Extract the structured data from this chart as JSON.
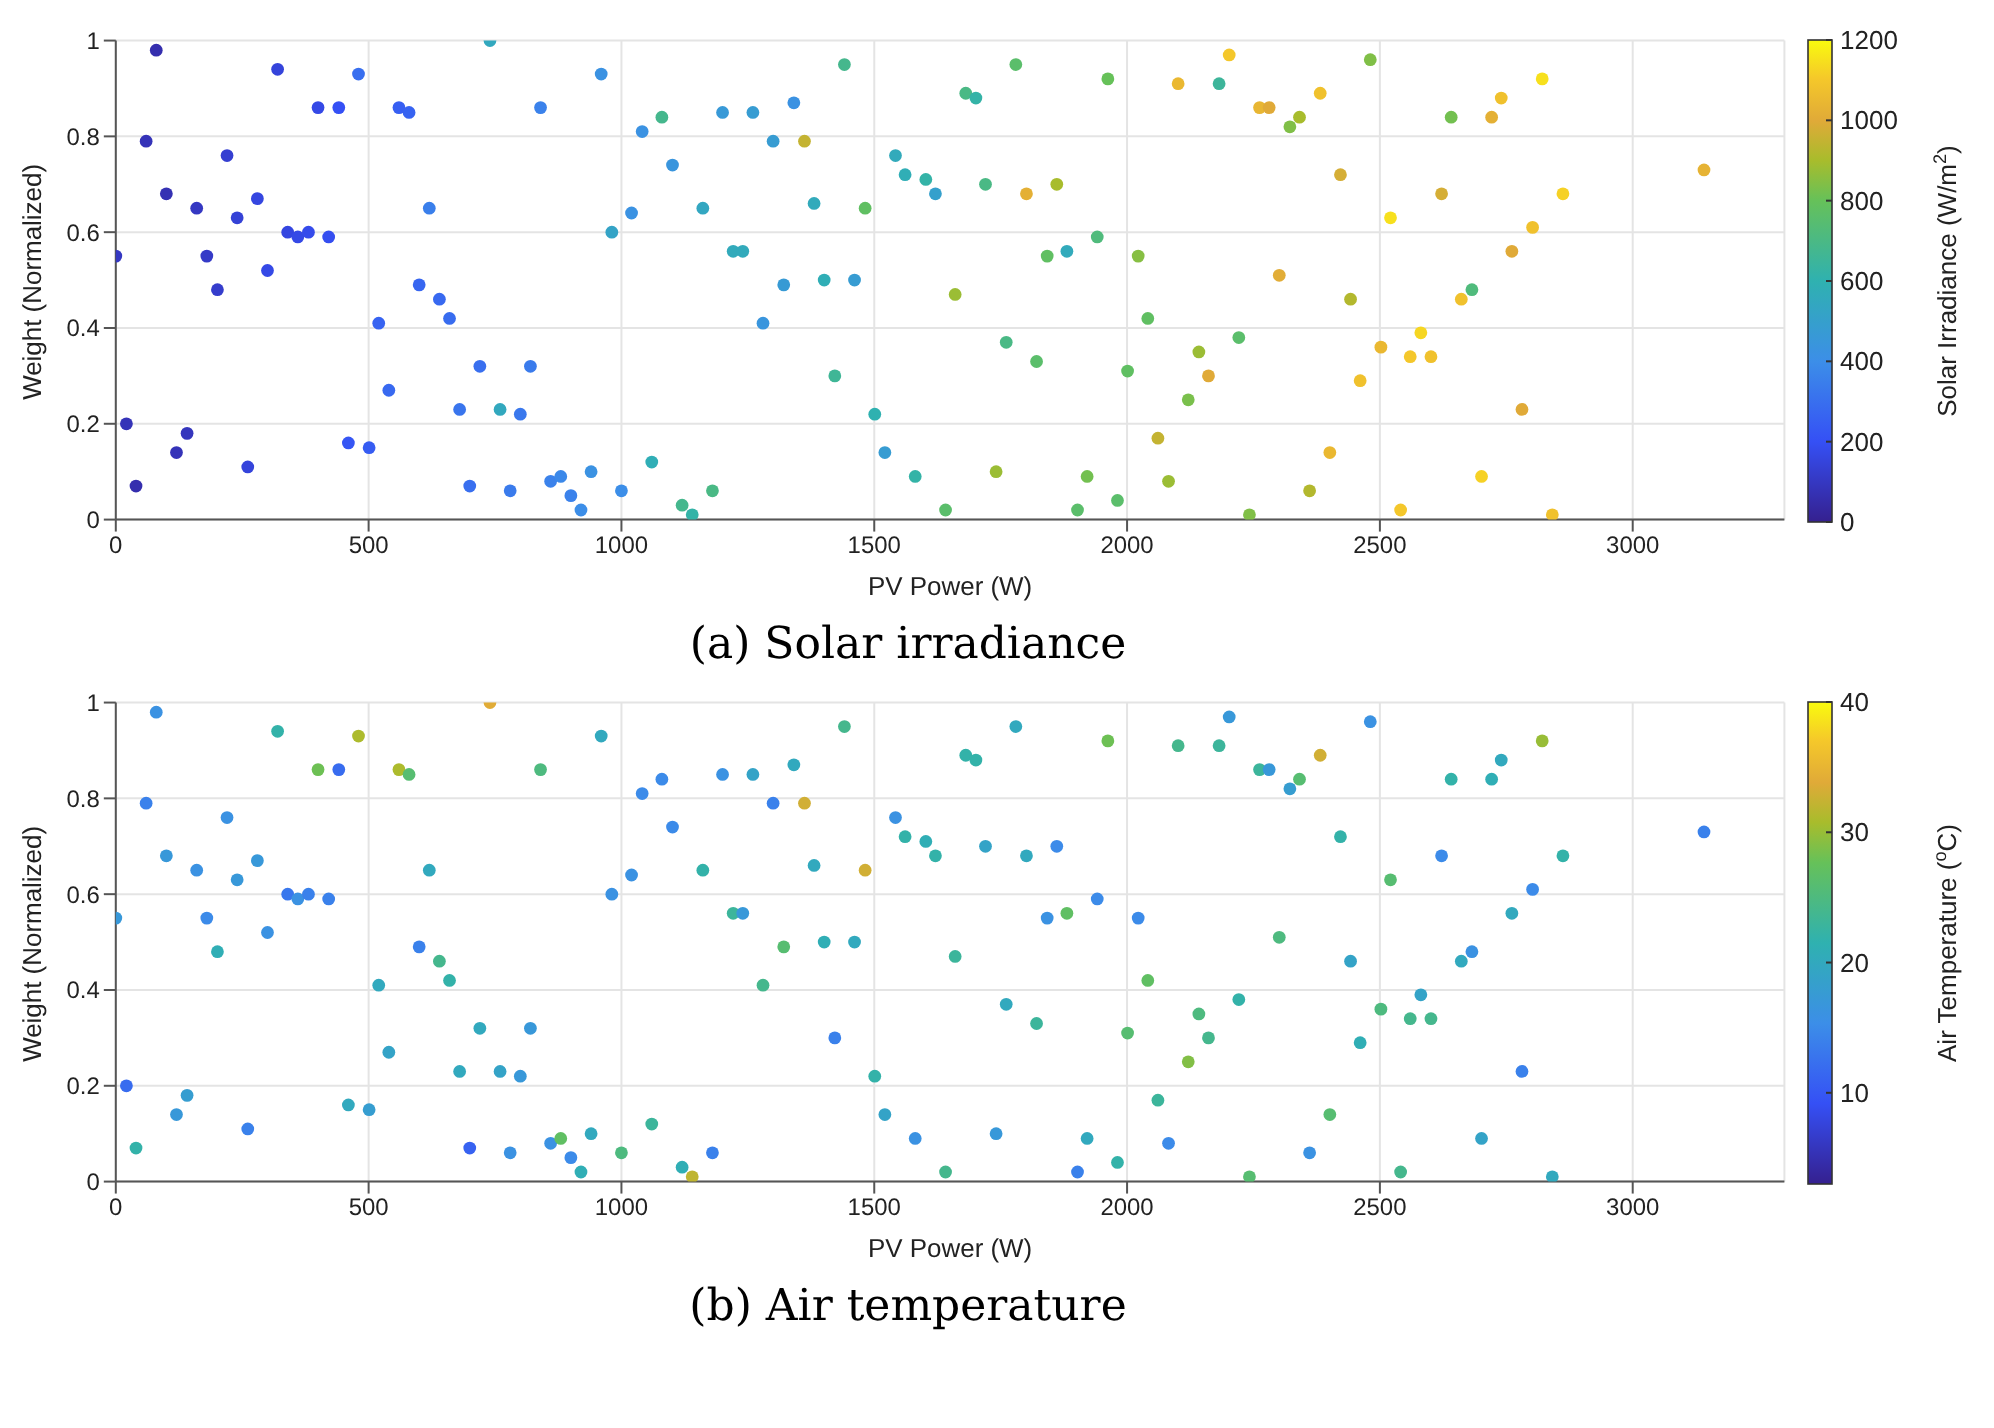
{
  "chart_data": [
    {
      "type": "scatter",
      "title": "(a) Solar irradiance",
      "xlabel": "PV Power (W)",
      "ylabel": "Weight (Normalized)",
      "clabel": "Solar Irradiance (W/m$^{2}$)",
      "marker": "circle",
      "grid": true,
      "xlim": [
        0,
        3300
      ],
      "xticks": [
        0,
        500,
        1000,
        1500,
        2000,
        2500,
        3000
      ],
      "ylim": [
        0,
        1
      ],
      "yticks": [
        0,
        0.2,
        0.4,
        0.6,
        0.8,
        1
      ],
      "clim": [
        0,
        1200
      ],
      "cticks": [
        0,
        200,
        400,
        600,
        800,
        1000,
        1200
      ],
      "x": [
        0,
        21,
        40,
        60,
        80,
        100,
        120,
        141,
        160,
        180,
        201,
        220,
        240,
        261,
        280,
        300,
        320,
        340,
        360,
        381,
        400,
        421,
        441,
        460,
        480,
        501,
        520,
        540,
        560,
        580,
        600,
        620,
        640,
        660,
        680,
        700,
        720,
        740,
        760,
        780,
        800,
        820,
        840,
        860,
        880,
        900,
        920,
        940,
        960,
        981,
        1000,
        1020,
        1041,
        1060,
        1080,
        1101,
        1120,
        1140,
        1161,
        1180,
        1200,
        1221,
        1240,
        1260,
        1280,
        1300,
        1321,
        1341,
        1362,
        1381,
        1401,
        1422,
        1441,
        1461,
        1482,
        1501,
        1521,
        1542,
        1561,
        1581,
        1602,
        1621,
        1641,
        1660,
        1681,
        1701,
        1720,
        1741,
        1761,
        1780,
        1801,
        1821,
        1842,
        1861,
        1881,
        1902,
        1921,
        1941,
        1962,
        1981,
        2001,
        2022,
        2041,
        2061,
        2082,
        2101,
        2121,
        2142,
        2161,
        2182,
        2202,
        2221,
        2242,
        2262,
        2281,
        2301,
        2322,
        2341,
        2361,
        2382,
        2401,
        2422,
        2442,
        2461,
        2481,
        2502,
        2521,
        2541,
        2560,
        2581,
        2601,
        2622,
        2641,
        2661,
        2682,
        2701,
        2721,
        2740,
        2761,
        2781,
        2802,
        2821,
        2841,
        2862,
        3141
      ],
      "values": [
        0.55,
        0.2,
        0.07,
        0.79,
        0.98,
        0.68,
        0.14,
        0.18,
        0.65,
        0.55,
        0.48,
        0.76,
        0.63,
        0.11,
        0.67,
        0.52,
        0.94,
        0.6,
        0.59,
        0.6,
        0.86,
        0.59,
        0.86,
        0.16,
        0.93,
        0.15,
        0.41,
        0.27,
        0.86,
        0.85,
        0.49,
        0.65,
        0.46,
        0.42,
        0.23,
        0.07,
        0.32,
        1.0,
        0.23,
        0.06,
        0.22,
        0.32,
        0.86,
        0.08,
        0.09,
        0.05,
        0.02,
        0.1,
        0.93,
        0.6,
        0.06,
        0.64,
        0.81,
        0.12,
        0.84,
        0.74,
        0.03,
        0.01,
        0.65,
        0.06,
        0.85,
        0.56,
        0.56,
        0.85,
        0.41,
        0.79,
        0.49,
        0.87,
        0.79,
        0.66,
        0.5,
        0.3,
        0.95,
        0.5,
        0.65,
        0.22,
        0.14,
        0.76,
        0.72,
        0.09,
        0.71,
        0.68,
        0.02,
        0.47,
        0.89,
        0.88,
        0.7,
        0.1,
        0.37,
        0.95,
        0.68,
        0.33,
        0.55,
        0.7,
        0.56,
        0.02,
        0.09,
        0.59,
        0.92,
        0.04,
        0.31,
        0.55,
        0.42,
        0.17,
        0.08,
        0.91,
        0.25,
        0.35,
        0.3,
        0.91,
        0.97,
        0.38,
        0.01,
        0.86,
        0.86,
        0.51,
        0.82,
        0.84,
        0.06,
        0.89,
        0.14,
        0.72,
        0.46,
        0.29,
        0.96,
        0.36,
        0.63,
        0.02,
        0.34,
        0.39,
        0.34,
        0.68,
        0.84,
        0.46,
        0.48,
        0.09,
        0.84,
        0.88,
        0.56,
        0.23,
        0.61,
        0.92,
        0.01,
        0.68,
        0.73
      ],
      "cvalues": [
        100,
        80,
        60,
        80,
        60,
        70,
        80,
        90,
        100,
        110,
        120,
        130,
        140,
        150,
        160,
        170,
        150,
        160,
        170,
        180,
        170,
        190,
        200,
        220,
        300,
        240,
        260,
        280,
        250,
        260,
        270,
        350,
        280,
        290,
        320,
        300,
        300,
        550,
        550,
        340,
        330,
        340,
        360,
        360,
        380,
        360,
        400,
        420,
        420,
        520,
        400,
        420,
        420,
        580,
        680,
        440,
        680,
        620,
        540,
        700,
        460,
        560,
        560,
        480,
        440,
        480,
        470,
        420,
        950,
        560,
        580,
        660,
        680,
        480,
        780,
        600,
        480,
        560,
        580,
        620,
        620,
        500,
        760,
        880,
        700,
        620,
        700,
        880,
        700,
        760,
        1020,
        760,
        780,
        900,
        560,
        760,
        820,
        720,
        800,
        760,
        780,
        850,
        780,
        950,
        880,
        1050,
        830,
        880,
        1000,
        650,
        1100,
        760,
        840,
        1040,
        1000,
        1010,
        840,
        900,
        920,
        1080,
        1050,
        980,
        920,
        1080,
        840,
        1050,
        1150,
        1100,
        1100,
        1130,
        1080,
        980,
        820,
        1080,
        720,
        1120,
        1020,
        1080,
        1000,
        1000,
        1080,
        1150,
        1080,
        1120,
        1030
      ]
    },
    {
      "type": "scatter",
      "title": "(b) Air temperature",
      "xlabel": "PV Power (W)",
      "ylabel": "Weight (Normalized)",
      "clabel": "Air Temperature ($^{o}$C)",
      "marker": "circle",
      "grid": true,
      "xlim": [
        0,
        3300
      ],
      "xticks": [
        0,
        500,
        1000,
        1500,
        2000,
        2500,
        3000
      ],
      "ylim": [
        0,
        1
      ],
      "yticks": [
        0,
        0.2,
        0.4,
        0.6,
        0.8,
        1
      ],
      "clim": [
        3,
        40
      ],
      "cticks": [
        10,
        20,
        30,
        40
      ],
      "x": [
        0,
        21,
        40,
        60,
        80,
        100,
        120,
        141,
        160,
        180,
        201,
        220,
        240,
        261,
        280,
        300,
        320,
        340,
        360,
        381,
        400,
        421,
        441,
        460,
        480,
        501,
        520,
        540,
        560,
        580,
        600,
        620,
        640,
        660,
        680,
        700,
        720,
        740,
        760,
        780,
        800,
        820,
        840,
        860,
        880,
        900,
        920,
        940,
        960,
        981,
        1000,
        1020,
        1041,
        1060,
        1080,
        1101,
        1120,
        1140,
        1161,
        1180,
        1200,
        1221,
        1240,
        1260,
        1280,
        1300,
        1321,
        1341,
        1362,
        1381,
        1401,
        1422,
        1441,
        1461,
        1482,
        1501,
        1521,
        1542,
        1561,
        1581,
        1602,
        1621,
        1641,
        1660,
        1681,
        1701,
        1720,
        1741,
        1761,
        1780,
        1801,
        1821,
        1842,
        1861,
        1881,
        1902,
        1921,
        1941,
        1962,
        1981,
        2001,
        2022,
        2041,
        2061,
        2082,
        2101,
        2121,
        2142,
        2161,
        2182,
        2202,
        2221,
        2242,
        2262,
        2281,
        2301,
        2322,
        2341,
        2361,
        2382,
        2401,
        2422,
        2442,
        2461,
        2481,
        2502,
        2521,
        2541,
        2560,
        2581,
        2601,
        2622,
        2641,
        2661,
        2682,
        2701,
        2721,
        2740,
        2761,
        2781,
        2802,
        2821,
        2841,
        2862,
        3141
      ],
      "values": [
        0.55,
        0.2,
        0.07,
        0.79,
        0.98,
        0.68,
        0.14,
        0.18,
        0.65,
        0.55,
        0.48,
        0.76,
        0.63,
        0.11,
        0.67,
        0.52,
        0.94,
        0.6,
        0.59,
        0.6,
        0.86,
        0.59,
        0.86,
        0.16,
        0.93,
        0.15,
        0.41,
        0.27,
        0.86,
        0.85,
        0.49,
        0.65,
        0.46,
        0.42,
        0.23,
        0.07,
        0.32,
        1.0,
        0.23,
        0.06,
        0.22,
        0.32,
        0.86,
        0.08,
        0.09,
        0.05,
        0.02,
        0.1,
        0.93,
        0.6,
        0.06,
        0.64,
        0.81,
        0.12,
        0.84,
        0.74,
        0.03,
        0.01,
        0.65,
        0.06,
        0.85,
        0.56,
        0.56,
        0.85,
        0.41,
        0.79,
        0.49,
        0.87,
        0.79,
        0.66,
        0.5,
        0.3,
        0.95,
        0.5,
        0.65,
        0.22,
        0.14,
        0.76,
        0.72,
        0.09,
        0.71,
        0.68,
        0.02,
        0.47,
        0.89,
        0.88,
        0.7,
        0.1,
        0.37,
        0.95,
        0.68,
        0.33,
        0.55,
        0.7,
        0.56,
        0.02,
        0.09,
        0.59,
        0.92,
        0.04,
        0.31,
        0.55,
        0.42,
        0.17,
        0.08,
        0.91,
        0.25,
        0.35,
        0.3,
        0.91,
        0.97,
        0.38,
        0.01,
        0.86,
        0.86,
        0.51,
        0.82,
        0.84,
        0.06,
        0.89,
        0.14,
        0.72,
        0.46,
        0.29,
        0.96,
        0.36,
        0.63,
        0.02,
        0.34,
        0.39,
        0.34,
        0.68,
        0.84,
        0.46,
        0.48,
        0.09,
        0.84,
        0.88,
        0.56,
        0.23,
        0.61,
        0.92,
        0.01,
        0.68,
        0.73
      ],
      "cvalues": [
        17,
        12,
        22,
        14,
        16,
        17,
        17,
        18,
        16,
        15,
        21,
        16,
        17,
        14,
        17,
        16,
        22,
        13,
        16,
        14,
        28,
        14,
        12,
        20,
        31,
        18,
        20,
        19,
        31,
        26,
        14,
        20,
        24,
        22,
        20,
        11,
        20,
        34,
        19,
        16,
        17,
        17,
        25,
        16,
        27,
        15,
        21,
        20,
        20,
        16,
        25,
        16,
        15,
        23,
        15,
        15,
        21,
        32,
        22,
        14,
        16,
        23,
        17,
        19,
        24,
        14,
        26,
        20,
        33,
        20,
        21,
        14,
        24,
        20,
        33,
        22,
        19,
        16,
        22,
        16,
        21,
        22,
        24,
        23,
        22,
        22,
        19,
        17,
        20,
        20,
        20,
        23,
        16,
        15,
        27,
        14,
        20,
        15,
        28,
        22,
        26,
        15,
        27,
        23,
        15,
        24,
        29,
        25,
        24,
        23,
        17,
        22,
        26,
        23,
        17,
        25,
        18,
        26,
        16,
        33,
        26,
        22,
        19,
        21,
        16,
        25,
        26,
        24,
        24,
        19,
        24,
        15,
        22,
        20,
        16,
        19,
        21,
        20,
        20,
        14,
        15,
        30,
        20,
        22,
        14
      ]
    }
  ]
}
